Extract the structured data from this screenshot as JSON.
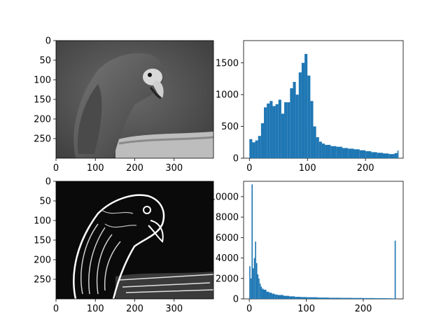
{
  "chart_data": [
    {
      "type": "image",
      "description_label": "grayscale-parrot",
      "xlim": [
        0,
        400
      ],
      "ylim": [
        300,
        0
      ],
      "xticks": [
        "0",
        "100",
        "200",
        "300"
      ],
      "yticks": [
        "0",
        "50",
        "100",
        "150",
        "200",
        "250"
      ]
    },
    {
      "type": "bar",
      "xlim": [
        -10,
        265
      ],
      "ylim": [
        0,
        1850
      ],
      "xticks": [
        "0",
        "100",
        "200"
      ],
      "yticks": [
        "0",
        "500",
        "1000",
        "1500"
      ],
      "bar_color": "#1f77b4",
      "x": [
        0,
        5,
        10,
        15,
        20,
        25,
        30,
        35,
        40,
        45,
        50,
        55,
        60,
        65,
        70,
        75,
        80,
        85,
        90,
        95,
        100,
        105,
        110,
        115,
        120,
        125,
        130,
        140,
        150,
        160,
        170,
        180,
        190,
        200,
        210,
        220,
        230,
        240,
        250,
        255
      ],
      "values": [
        300,
        250,
        280,
        350,
        550,
        800,
        860,
        900,
        820,
        850,
        920,
        700,
        880,
        880,
        1100,
        1200,
        1000,
        1350,
        1500,
        1640,
        1300,
        900,
        500,
        330,
        260,
        230,
        210,
        190,
        180,
        160,
        150,
        140,
        125,
        110,
        95,
        85,
        75,
        65,
        80,
        120
      ]
    },
    {
      "type": "image",
      "description_label": "edge-detected-parrot",
      "xlim": [
        0,
        400
      ],
      "ylim": [
        300,
        0
      ],
      "xticks": [
        "0",
        "100",
        "200",
        "300"
      ],
      "yticks": [
        "0",
        "50",
        "100",
        "150",
        "200",
        "250"
      ]
    },
    {
      "type": "bar",
      "xlim": [
        -10,
        270
      ],
      "ylim": [
        0,
        11500
      ],
      "xticks": [
        "0",
        "100",
        "200"
      ],
      "yticks": [
        "0",
        "2000",
        "4000",
        "6000",
        "8000",
        "10000"
      ],
      "bar_color": "#1f77b4",
      "x": [
        0,
        2,
        4,
        6,
        8,
        10,
        12,
        14,
        16,
        18,
        20,
        22,
        25,
        30,
        35,
        40,
        45,
        50,
        60,
        70,
        80,
        90,
        100,
        120,
        140,
        160,
        180,
        200,
        220,
        240,
        250,
        255
      ],
      "values": [
        3200,
        2000,
        11200,
        3000,
        4000,
        5600,
        3500,
        2400,
        2000,
        1500,
        1200,
        1000,
        900,
        700,
        600,
        500,
        420,
        380,
        300,
        250,
        200,
        180,
        160,
        130,
        110,
        100,
        90,
        80,
        70,
        60,
        50,
        5700
      ]
    }
  ]
}
